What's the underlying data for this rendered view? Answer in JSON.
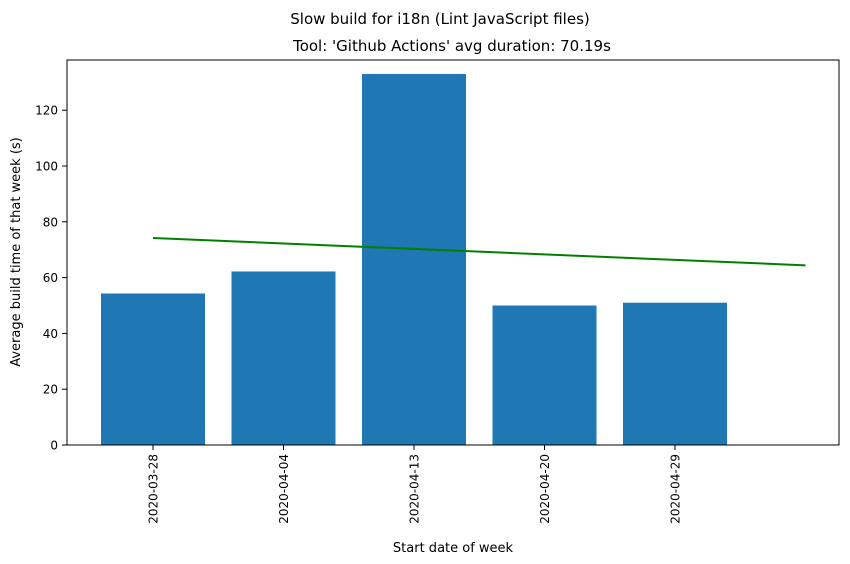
{
  "chart_data": {
    "type": "bar",
    "suptitle": "Slow build for i18n (Lint JavaScript files)",
    "title": "Tool: 'Github Actions' avg duration: 70.19s",
    "xlabel": "Start date of week",
    "ylabel": "Average build time of that week (s)",
    "categories": [
      "2020-03-28",
      "2020-04-04",
      "2020-04-13",
      "2020-04-20",
      "2020-04-29"
    ],
    "values": [
      54.3,
      62.2,
      133.0,
      50.0,
      51.0
    ],
    "bar_color": "#1f77b4",
    "trend_line": {
      "color": "#008000",
      "start": 74.2,
      "end": 64.4
    },
    "ylim": [
      0,
      138
    ],
    "yticks": [
      0,
      20,
      40,
      60,
      80,
      100,
      120
    ],
    "x_tick_rotation": "vertical",
    "grid": false,
    "legend": "none"
  }
}
